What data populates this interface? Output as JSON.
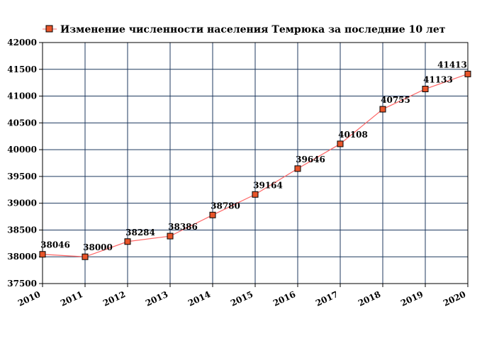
{
  "chart_data": {
    "type": "line",
    "title": "",
    "xlabel": "",
    "ylabel": "",
    "categories": [
      "2010",
      "2011",
      "2012",
      "2013",
      "2014",
      "2015",
      "2016",
      "2017",
      "2018",
      "2019",
      "2020"
    ],
    "series": [
      {
        "name": "Изменение численности населения Темрюка за последние 10 лет",
        "values": [
          38046,
          38000,
          38284,
          38386,
          38780,
          39164,
          39646,
          40108,
          40755,
          41133,
          41413
        ],
        "data_labels": [
          "38046",
          "38000",
          "38284",
          "38386",
          "38780",
          "39164",
          "39646",
          "40108",
          "40755",
          "41133",
          "41413"
        ],
        "color": "#ff6666",
        "marker_color": "#e8552a"
      }
    ],
    "ylim": [
      37500,
      42000
    ],
    "yticks": [
      37500,
      38000,
      38500,
      39000,
      39500,
      40000,
      40500,
      41000,
      41500,
      42000
    ],
    "ytick_labels": [
      "37500",
      "38000",
      "38500",
      "39000",
      "39500",
      "40000",
      "40500",
      "41000",
      "41500",
      "42000"
    ],
    "grid": true,
    "grid_color": "#1f3a5f",
    "legend_position": "top",
    "data_labels_shown": true
  }
}
